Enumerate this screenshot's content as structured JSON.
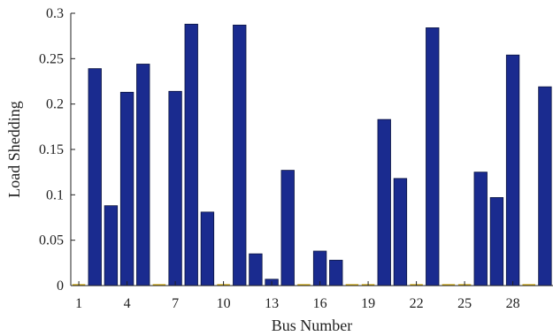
{
  "chart_data": {
    "type": "bar",
    "x": [
      1,
      2,
      3,
      4,
      5,
      6,
      7,
      8,
      9,
      10,
      11,
      12,
      13,
      14,
      15,
      16,
      17,
      18,
      19,
      20,
      21,
      22,
      23,
      24,
      25,
      26,
      27,
      28,
      29,
      30
    ],
    "values": [
      0,
      0.239,
      0.088,
      0.213,
      0.244,
      0,
      0.214,
      0.288,
      0.081,
      0,
      0.287,
      0.035,
      0.007,
      0.127,
      0,
      0.038,
      0.028,
      0,
      0,
      0.183,
      0.118,
      0,
      0.284,
      0,
      0,
      0.125,
      0.097,
      0.254,
      0,
      0.219
    ],
    "xlabel": "Bus Number",
    "ylabel": "Load Shedding",
    "xticks": [
      1,
      4,
      7,
      10,
      13,
      16,
      19,
      22,
      25,
      28
    ],
    "yticks": [
      "0",
      "0.05",
      "0.1",
      "0.15",
      "0.2",
      "0.25",
      "0.3"
    ],
    "ylim": [
      0,
      0.3
    ],
    "xlim": [
      0.5,
      30.5
    ],
    "grid": false,
    "colors": {
      "bar_fill": "#1a2b8f",
      "bar_edge": "#0b1440",
      "zero_line": "#c8a000"
    }
  }
}
